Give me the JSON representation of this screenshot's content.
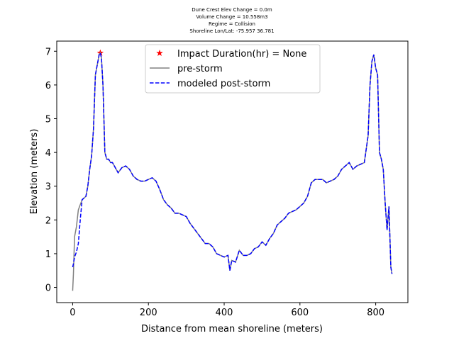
{
  "chart_data": {
    "type": "line",
    "title": [
      "Dune Crest Elev Change = 0.0m",
      "Volume Change = 10.558m3",
      "Regime = Collision",
      "Shoreline Lon/Lat: -75.957 36.781"
    ],
    "x_label": "Distance from mean shoreline (meters)",
    "y_label": "Elevation (meters)",
    "xlim": [
      -42,
      885
    ],
    "ylim": [
      -0.45,
      7.3
    ],
    "xticks": [
      0,
      200,
      400,
      600,
      800
    ],
    "yticks": [
      0,
      1,
      2,
      3,
      4,
      5,
      6,
      7
    ],
    "legend": "upper center",
    "x": [
      0,
      2,
      5,
      10,
      15,
      20,
      25,
      30,
      35,
      40,
      45,
      50,
      55,
      60,
      65,
      70,
      73,
      76,
      80,
      85,
      90,
      95,
      100,
      105,
      110,
      120,
      130,
      140,
      150,
      160,
      170,
      180,
      190,
      200,
      210,
      220,
      230,
      240,
      250,
      260,
      270,
      280,
      290,
      300,
      310,
      320,
      330,
      340,
      350,
      360,
      370,
      380,
      390,
      400,
      410,
      415,
      420,
      430,
      440,
      450,
      460,
      470,
      480,
      490,
      500,
      510,
      520,
      530,
      540,
      550,
      560,
      570,
      580,
      590,
      600,
      610,
      620,
      630,
      640,
      650,
      660,
      670,
      680,
      690,
      700,
      710,
      720,
      730,
      740,
      750,
      760,
      770,
      780,
      785,
      790,
      795,
      800,
      805,
      810,
      815,
      820,
      825,
      830,
      835,
      840,
      843
    ],
    "series": [
      {
        "name": "Impact Duration(hr) = None",
        "color": "#ff0000",
        "marker": "star",
        "x": [
          73
        ],
        "values": [
          6.95
        ]
      },
      {
        "name": "pre-storm",
        "color": "#808080",
        "style": "solid",
        "values": [
          -0.1,
          0.4,
          1.5,
          1.8,
          2.3,
          2.45,
          2.6,
          2.65,
          2.7,
          3.0,
          3.5,
          3.9,
          4.7,
          6.3,
          6.6,
          6.9,
          6.95,
          6.8,
          6.0,
          4.0,
          3.8,
          3.8,
          3.7,
          3.7,
          3.6,
          3.4,
          3.55,
          3.6,
          3.5,
          3.3,
          3.2,
          3.15,
          3.15,
          3.2,
          3.25,
          3.15,
          2.9,
          2.6,
          2.45,
          2.35,
          2.2,
          2.2,
          2.15,
          2.1,
          1.9,
          1.75,
          1.6,
          1.45,
          1.3,
          1.3,
          1.2,
          1.0,
          0.95,
          0.9,
          0.95,
          0.5,
          0.8,
          0.75,
          1.1,
          0.95,
          0.95,
          1.0,
          1.15,
          1.2,
          1.35,
          1.25,
          1.45,
          1.6,
          1.85,
          1.95,
          2.05,
          2.2,
          2.25,
          2.3,
          2.4,
          2.5,
          2.7,
          3.1,
          3.2,
          3.2,
          3.2,
          3.1,
          3.15,
          3.2,
          3.3,
          3.5,
          3.6,
          3.7,
          3.5,
          3.6,
          3.65,
          3.7,
          4.5,
          6.0,
          6.7,
          6.9,
          6.5,
          6.3,
          4.0,
          3.8,
          3.5,
          2.5,
          1.7,
          2.4,
          0.6,
          0.4
        ]
      },
      {
        "name": "modeled post-storm",
        "color": "#0000ff",
        "style": "dashed",
        "values": [
          0.6,
          0.7,
          0.9,
          1.05,
          1.3,
          2.0,
          2.6,
          2.65,
          2.7,
          3.0,
          3.5,
          3.9,
          4.7,
          6.3,
          6.6,
          6.9,
          6.95,
          6.8,
          6.0,
          4.0,
          3.8,
          3.8,
          3.7,
          3.7,
          3.6,
          3.4,
          3.55,
          3.6,
          3.5,
          3.3,
          3.2,
          3.15,
          3.15,
          3.2,
          3.25,
          3.15,
          2.9,
          2.6,
          2.45,
          2.35,
          2.2,
          2.2,
          2.15,
          2.1,
          1.9,
          1.75,
          1.6,
          1.45,
          1.3,
          1.3,
          1.2,
          1.0,
          0.95,
          0.9,
          0.95,
          0.5,
          0.8,
          0.75,
          1.1,
          0.95,
          0.95,
          1.0,
          1.15,
          1.2,
          1.35,
          1.25,
          1.45,
          1.6,
          1.85,
          1.95,
          2.05,
          2.2,
          2.25,
          2.3,
          2.4,
          2.5,
          2.7,
          3.1,
          3.2,
          3.2,
          3.2,
          3.1,
          3.15,
          3.2,
          3.3,
          3.5,
          3.6,
          3.7,
          3.5,
          3.6,
          3.65,
          3.7,
          4.5,
          6.0,
          6.7,
          6.9,
          6.5,
          6.3,
          4.0,
          3.8,
          3.5,
          2.5,
          1.7,
          2.4,
          0.6,
          0.4
        ]
      }
    ]
  }
}
